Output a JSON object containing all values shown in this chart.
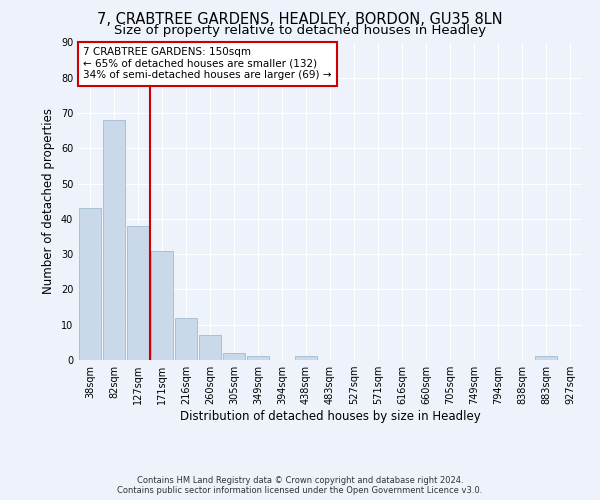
{
  "title_line1": "7, CRABTREE GARDENS, HEADLEY, BORDON, GU35 8LN",
  "title_line2": "Size of property relative to detached houses in Headley",
  "xlabel": "Distribution of detached houses by size in Headley",
  "ylabel": "Number of detached properties",
  "footnote": "Contains HM Land Registry data © Crown copyright and database right 2024.\nContains public sector information licensed under the Open Government Licence v3.0.",
  "categories": [
    "38sqm",
    "82sqm",
    "127sqm",
    "171sqm",
    "216sqm",
    "260sqm",
    "305sqm",
    "349sqm",
    "394sqm",
    "438sqm",
    "483sqm",
    "527sqm",
    "571sqm",
    "616sqm",
    "660sqm",
    "705sqm",
    "749sqm",
    "794sqm",
    "838sqm",
    "883sqm",
    "927sqm"
  ],
  "values": [
    43,
    68,
    38,
    31,
    12,
    7,
    2,
    1,
    0,
    1,
    0,
    0,
    0,
    0,
    0,
    0,
    0,
    0,
    0,
    1,
    0
  ],
  "bar_color": "#c9d9ea",
  "bar_edge_color": "#a0bcd0",
  "vline_x_index": 2.5,
  "vline_color": "#cc0000",
  "annotation_text": "7 CRABTREE GARDENS: 150sqm\n← 65% of detached houses are smaller (132)\n34% of semi-detached houses are larger (69) →",
  "annotation_box_color": "#ffffff",
  "annotation_box_edge_color": "#cc0000",
  "ylim": [
    0,
    90
  ],
  "yticks": [
    0,
    10,
    20,
    30,
    40,
    50,
    60,
    70,
    80,
    90
  ],
  "background_color": "#eef2fa",
  "plot_background_color": "#eef2fa",
  "grid_color": "#ffffff",
  "title_fontsize": 10.5,
  "subtitle_fontsize": 9.5,
  "axis_label_fontsize": 8.5,
  "tick_fontsize": 7,
  "annotation_fontsize": 7.5,
  "footnote_fontsize": 6.0
}
